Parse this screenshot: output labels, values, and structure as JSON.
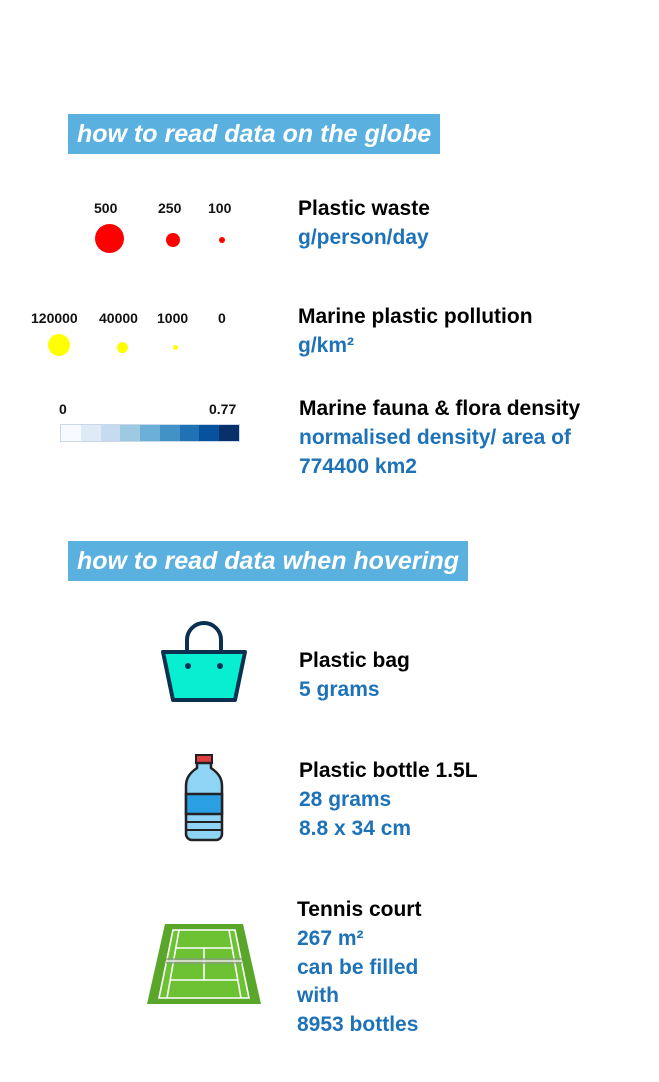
{
  "globe_section": {
    "heading": "how to read data on the globe",
    "plastic_waste": {
      "title": "Plastic waste",
      "unit": "g/person/day",
      "legend_values": [
        "500",
        "250",
        "100"
      ],
      "color": "#ff0000"
    },
    "marine_pollution": {
      "title": "Marine plastic pollution",
      "unit": "g/km²",
      "legend_values": [
        "120000",
        "40000",
        "1000",
        "0"
      ],
      "color": "#ffff00"
    },
    "fauna_flora": {
      "title": "Marine fauna & flora density",
      "unit_line1": "normalised density/ area of",
      "unit_line2": "774400 km2",
      "scale_min": "0",
      "scale_max": "0.77",
      "scale_colors": [
        "#f7fbff",
        "#deebf7",
        "#c6dbef",
        "#9ecae1",
        "#6baed6",
        "#4292c6",
        "#2171b5",
        "#08519c",
        "#08306b"
      ]
    }
  },
  "hover_section": {
    "heading": "how to read data when hovering",
    "bag": {
      "icon": "shopping-bag-icon",
      "title": "Plastic bag",
      "line1": "5 grams"
    },
    "bottle": {
      "icon": "water-bottle-icon",
      "title": "Plastic bottle 1.5L",
      "line1": "28 grams",
      "line2": "8.8 x 34 cm"
    },
    "court": {
      "icon": "tennis-court-icon",
      "title": "Tennis court",
      "line1": "267 m²",
      "line2": "can be filled",
      "line3": "with",
      "line4": "8953 bottles"
    }
  }
}
